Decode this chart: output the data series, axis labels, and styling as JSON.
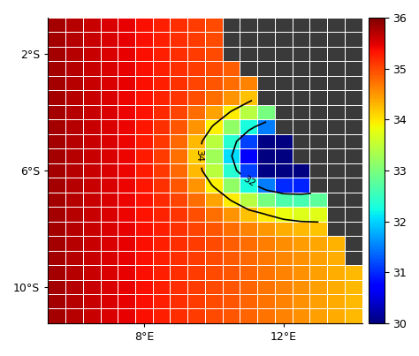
{
  "lon_min": 5.5,
  "lon_max": 14.0,
  "lat_min": -11.0,
  "lat_max": -1.0,
  "cmap_vmin": 30,
  "cmap_vmax": 36,
  "colorbar_ticks": [
    30,
    31,
    32,
    33,
    34,
    35,
    36
  ],
  "xticks": [
    8,
    12
  ],
  "xtick_labels": [
    "8°E",
    "12°E"
  ],
  "yticks": [
    -2,
    -6,
    -10
  ],
  "ytick_labels": [
    "2°S",
    "6°S",
    "10°S"
  ],
  "contour_levels": [
    32,
    34
  ],
  "background_color": "#3a3a3a",
  "grid_color": "white",
  "cell_size": 0.5
}
